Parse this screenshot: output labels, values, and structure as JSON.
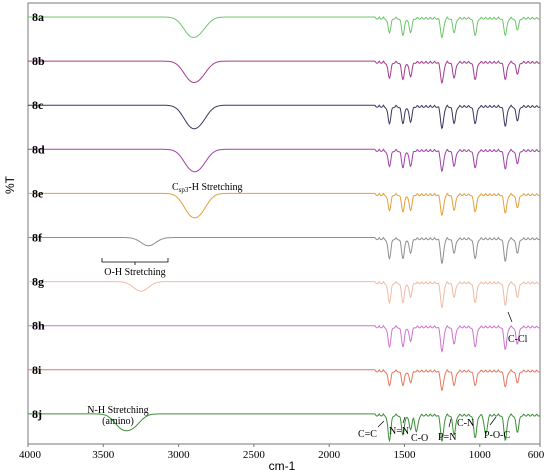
{
  "chart_data": {
    "type": "line",
    "title": "",
    "xlabel": "cm-1",
    "ylabel": "%T",
    "xlim": [
      4000,
      600
    ],
    "x_reversed": true,
    "x_ticks": [
      "4000",
      "3500",
      "3000",
      "2500",
      "2000",
      "1500",
      "1000",
      "600"
    ],
    "x_tick_values": [
      4000,
      3500,
      3000,
      2500,
      2000,
      1500,
      1000,
      600
    ],
    "y_ticks_shown": false,
    "grid": false,
    "legend": "none",
    "series": [
      {
        "name": "8a",
        "color": "#6cc56a",
        "bands": [
          [
            2925,
            0.55
          ],
          [
            2855,
            0.4
          ],
          [
            1600,
            0.5
          ],
          [
            1510,
            0.6
          ],
          [
            1460,
            0.5
          ],
          [
            1250,
            0.7
          ],
          [
            1170,
            0.5
          ],
          [
            1030,
            0.6
          ],
          [
            830,
            0.6
          ],
          [
            750,
            0.4
          ]
        ]
      },
      {
        "name": "8b",
        "color": "#a23c8f",
        "bands": [
          [
            2925,
            0.55
          ],
          [
            2855,
            0.45
          ],
          [
            1600,
            0.55
          ],
          [
            1510,
            0.6
          ],
          [
            1460,
            0.5
          ],
          [
            1250,
            0.75
          ],
          [
            1170,
            0.55
          ],
          [
            1030,
            0.6
          ],
          [
            830,
            0.6
          ],
          [
            750,
            0.4
          ]
        ]
      },
      {
        "name": "8c",
        "color": "#3a3760",
        "bands": [
          [
            2925,
            0.6
          ],
          [
            2855,
            0.5
          ],
          [
            1600,
            0.6
          ],
          [
            1510,
            0.6
          ],
          [
            1460,
            0.55
          ],
          [
            1250,
            0.8
          ],
          [
            1170,
            0.6
          ],
          [
            1030,
            0.6
          ],
          [
            830,
            0.7
          ],
          [
            750,
            0.5
          ]
        ]
      },
      {
        "name": "8d",
        "color": "#a040a8",
        "bands": [
          [
            2925,
            0.55
          ],
          [
            2855,
            0.5
          ],
          [
            1600,
            0.55
          ],
          [
            1510,
            0.6
          ],
          [
            1460,
            0.55
          ],
          [
            1250,
            0.75
          ],
          [
            1170,
            0.55
          ],
          [
            1030,
            0.6
          ],
          [
            830,
            0.65
          ],
          [
            750,
            0.45
          ]
        ]
      },
      {
        "name": "8e",
        "color": "#e3a03a",
        "bands": [
          [
            2925,
            0.6
          ],
          [
            2855,
            0.55
          ],
          [
            1600,
            0.55
          ],
          [
            1510,
            0.6
          ],
          [
            1460,
            0.55
          ],
          [
            1250,
            0.75
          ],
          [
            1170,
            0.55
          ],
          [
            1030,
            0.6
          ],
          [
            830,
            0.65
          ],
          [
            750,
            0.45
          ]
        ]
      },
      {
        "name": "8f",
        "color": "#8f8f8f",
        "bands": [
          [
            3200,
            0.3
          ],
          [
            1600,
            0.7
          ],
          [
            1510,
            0.7
          ],
          [
            1460,
            0.5
          ],
          [
            1250,
            0.9
          ],
          [
            1170,
            0.5
          ],
          [
            1030,
            0.7
          ],
          [
            830,
            0.8
          ],
          [
            750,
            0.5
          ]
        ]
      },
      {
        "name": "8g",
        "color": "#f0bba6",
        "bands": [
          [
            3250,
            0.35
          ],
          [
            1600,
            0.7
          ],
          [
            1510,
            0.7
          ],
          [
            1460,
            0.5
          ],
          [
            1250,
            0.9
          ],
          [
            1170,
            0.5
          ],
          [
            1030,
            0.7
          ],
          [
            830,
            0.8
          ],
          [
            750,
            0.5
          ]
        ]
      },
      {
        "name": "8h",
        "color": "#cf74cf",
        "bands": [
          [
            1600,
            0.7
          ],
          [
            1510,
            0.7
          ],
          [
            1460,
            0.5
          ],
          [
            1250,
            0.9
          ],
          [
            1170,
            0.6
          ],
          [
            1030,
            0.7
          ],
          [
            830,
            0.8
          ],
          [
            750,
            0.6
          ]
        ]
      },
      {
        "name": "8i",
        "color": "#e5775e",
        "bands": [
          [
            1600,
            0.5
          ],
          [
            1510,
            0.5
          ],
          [
            1460,
            0.4
          ],
          [
            1250,
            0.7
          ],
          [
            1170,
            0.5
          ],
          [
            1030,
            0.5
          ],
          [
            830,
            0.55
          ],
          [
            750,
            0.4
          ]
        ]
      },
      {
        "name": "8j",
        "color": "#3d8f3a",
        "bands": [
          [
            3380,
            0.45
          ],
          [
            3300,
            0.4
          ],
          [
            1600,
            0.9
          ],
          [
            1510,
            0.7
          ],
          [
            1460,
            0.5
          ],
          [
            1420,
            0.6
          ],
          [
            1250,
            0.95
          ],
          [
            1170,
            0.7
          ],
          [
            1030,
            0.8
          ],
          [
            960,
            0.7
          ],
          [
            830,
            0.9
          ],
          [
            750,
            0.6
          ]
        ]
      }
    ],
    "annotations": [
      {
        "text": "Csp3-H Stretching",
        "main": "C",
        "sub": "sp3",
        "rest": "-H Stretching",
        "near_x": 2900,
        "series": "8e"
      },
      {
        "text": "O-H Stretching",
        "near_x": 3250,
        "series": "8g"
      },
      {
        "text": "N-H Stretching",
        "near_x": 3350,
        "series": "8j"
      },
      {
        "text": "(amino)",
        "near_x": 3350,
        "series": "8j"
      },
      {
        "text": "C-Cl",
        "near_x": 720,
        "series": "8h"
      },
      {
        "text": "C=C",
        "near_x": 1600,
        "series": "8j"
      },
      {
        "text": "N=N",
        "near_x": 1510,
        "series": "8j"
      },
      {
        "text": "C-O",
        "near_x": 1420,
        "series": "8j"
      },
      {
        "text": "P=N",
        "near_x": 1250,
        "series": "8j"
      },
      {
        "text": "C-N",
        "near_x": 1170,
        "series": "8j"
      },
      {
        "text": "P-O-C",
        "near_x": 960,
        "series": "8j"
      }
    ]
  }
}
